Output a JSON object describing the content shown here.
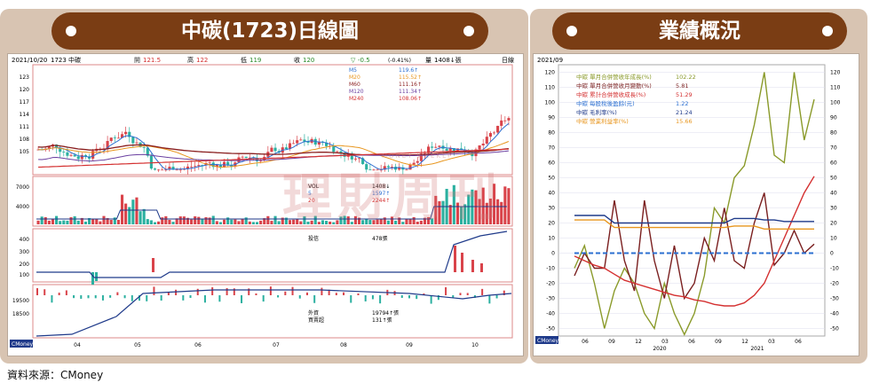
{
  "left_title": "中碳(1723)日線圖",
  "right_title": "業績概況",
  "source": "資料來源：CMoney",
  "watermark": "理財周刊",
  "watermark_sub": "MONEY WEEKLY",
  "colors": {
    "tab": "#7a3d14",
    "frame": "#d8c4b2",
    "up": "#d9434a",
    "down": "#2bb0a0"
  },
  "left_chart": {
    "header": {
      "date": "2021/10/20",
      "stock": "1723 中碳",
      "open_label": "開",
      "open": "121.5",
      "high_label": "高",
      "high": "122",
      "low_label": "低",
      "low": "119",
      "close_label": "收",
      "close": "120",
      "change_label": "▽",
      "change": "-0.5",
      "pct": "(-0.41%)",
      "vol_label": "量",
      "vol": "1408↓張",
      "period": "日線"
    },
    "ma_legend": [
      {
        "name": "M5",
        "value": "119.6↑",
        "color": "#2b6fd1"
      },
      {
        "name": "M20",
        "value": "115.52↑",
        "color": "#e8961e"
      },
      {
        "name": "M60",
        "value": "111.16↑",
        "color": "#8a1f1f"
      },
      {
        "name": "M120",
        "value": "111.34↑",
        "color": "#6a3fa0"
      },
      {
        "name": "M240",
        "value": "108.06↑",
        "color": "#d43030"
      }
    ],
    "price_ticks": [
      "123",
      "120",
      "117",
      "114",
      "111",
      "108",
      "105"
    ],
    "vol_legend": [
      {
        "name": "VOL",
        "value": "1408↓"
      },
      {
        "name": "5",
        "value": "1597↑"
      },
      {
        "name": "20",
        "value": "2244↑"
      }
    ],
    "vol_ticks": [
      "7000",
      "4000"
    ],
    "invest_label": "投信",
    "invest_value": "478張",
    "invest_ticks": [
      "400",
      "300",
      "200",
      "100"
    ],
    "foreign_label": "外資",
    "foreign_value": "19794↑張",
    "foreign_label2": "買賣超",
    "foreign_value2": "131↑張",
    "foreign_ticks": [
      "19500",
      "18500"
    ],
    "months": [
      "04",
      "05",
      "06",
      "07",
      "08",
      "09",
      "10"
    ],
    "logo": "CMoney"
  },
  "chart_data": {
    "type": "line",
    "title": "",
    "period_label": "2021/09",
    "x_ticks": [
      "06",
      "09",
      "12",
      "03",
      "06",
      "09",
      "12",
      "03",
      "06"
    ],
    "year_labels": [
      "2020",
      "2021"
    ],
    "ylim": [
      -55,
      125
    ],
    "y_ticks": [
      120,
      110,
      100,
      90,
      80,
      70,
      60,
      50,
      40,
      30,
      20,
      10,
      0,
      -10,
      -20,
      -30,
      -40,
      -50
    ],
    "series": [
      {
        "name": "中碳 單月合併營收年成長(%)",
        "value": "102.22",
        "color": "#8a9a2a",
        "values": [
          -10,
          5,
          -20,
          -50,
          -25,
          -10,
          -20,
          -40,
          -50,
          -20,
          -40,
          -54,
          -40,
          -15,
          30,
          20,
          50,
          58,
          85,
          120,
          65,
          60,
          120,
          75,
          102
        ]
      },
      {
        "name": "中碳 單月合併營收月變動(%)",
        "value": "5.81",
        "color": "#7a1f1f",
        "values": [
          -15,
          0,
          -10,
          -10,
          35,
          -5,
          -25,
          35,
          -5,
          -30,
          5,
          -30,
          -20,
          10,
          -5,
          30,
          -5,
          -10,
          20,
          40,
          -8,
          0,
          15,
          0,
          6
        ]
      },
      {
        "name": "中碳 累計合併營收成長(%)",
        "value": "51.29",
        "color": "#d43030",
        "values": [
          -2,
          -5,
          -8,
          -10,
          -14,
          -18,
          -20,
          -22,
          -24,
          -26,
          -28,
          -29,
          -31,
          -32,
          -34,
          -35,
          -35,
          -33,
          -28,
          -20,
          -5,
          10,
          25,
          40,
          51
        ]
      },
      {
        "name": "中碳 每股稅後盈餘(元)",
        "value": "1.22",
        "color": "#2b6fd1",
        "values": [
          0,
          0,
          0,
          0,
          0,
          0,
          0,
          0,
          0,
          0,
          0,
          0,
          0,
          0,
          0,
          0,
          0,
          0,
          0,
          0,
          0,
          0,
          0,
          0,
          0
        ]
      },
      {
        "name": "中碳 毛利率(%)",
        "value": "21.24",
        "color": "#1f3a8a",
        "values": [
          25,
          25,
          25,
          25,
          20,
          20,
          20,
          20,
          20,
          20,
          20,
          20,
          20,
          20,
          20,
          20,
          23,
          23,
          23,
          22,
          22,
          21,
          21,
          21,
          21
        ]
      },
      {
        "name": "中碳 營業利益率(%)",
        "value": "15.66",
        "color": "#e8961e",
        "values": [
          22,
          22,
          22,
          22,
          17,
          17,
          17,
          17,
          17,
          17,
          17,
          17,
          17,
          17,
          17,
          17,
          18,
          18,
          18,
          16,
          16,
          16,
          16,
          16,
          16
        ]
      }
    ]
  }
}
